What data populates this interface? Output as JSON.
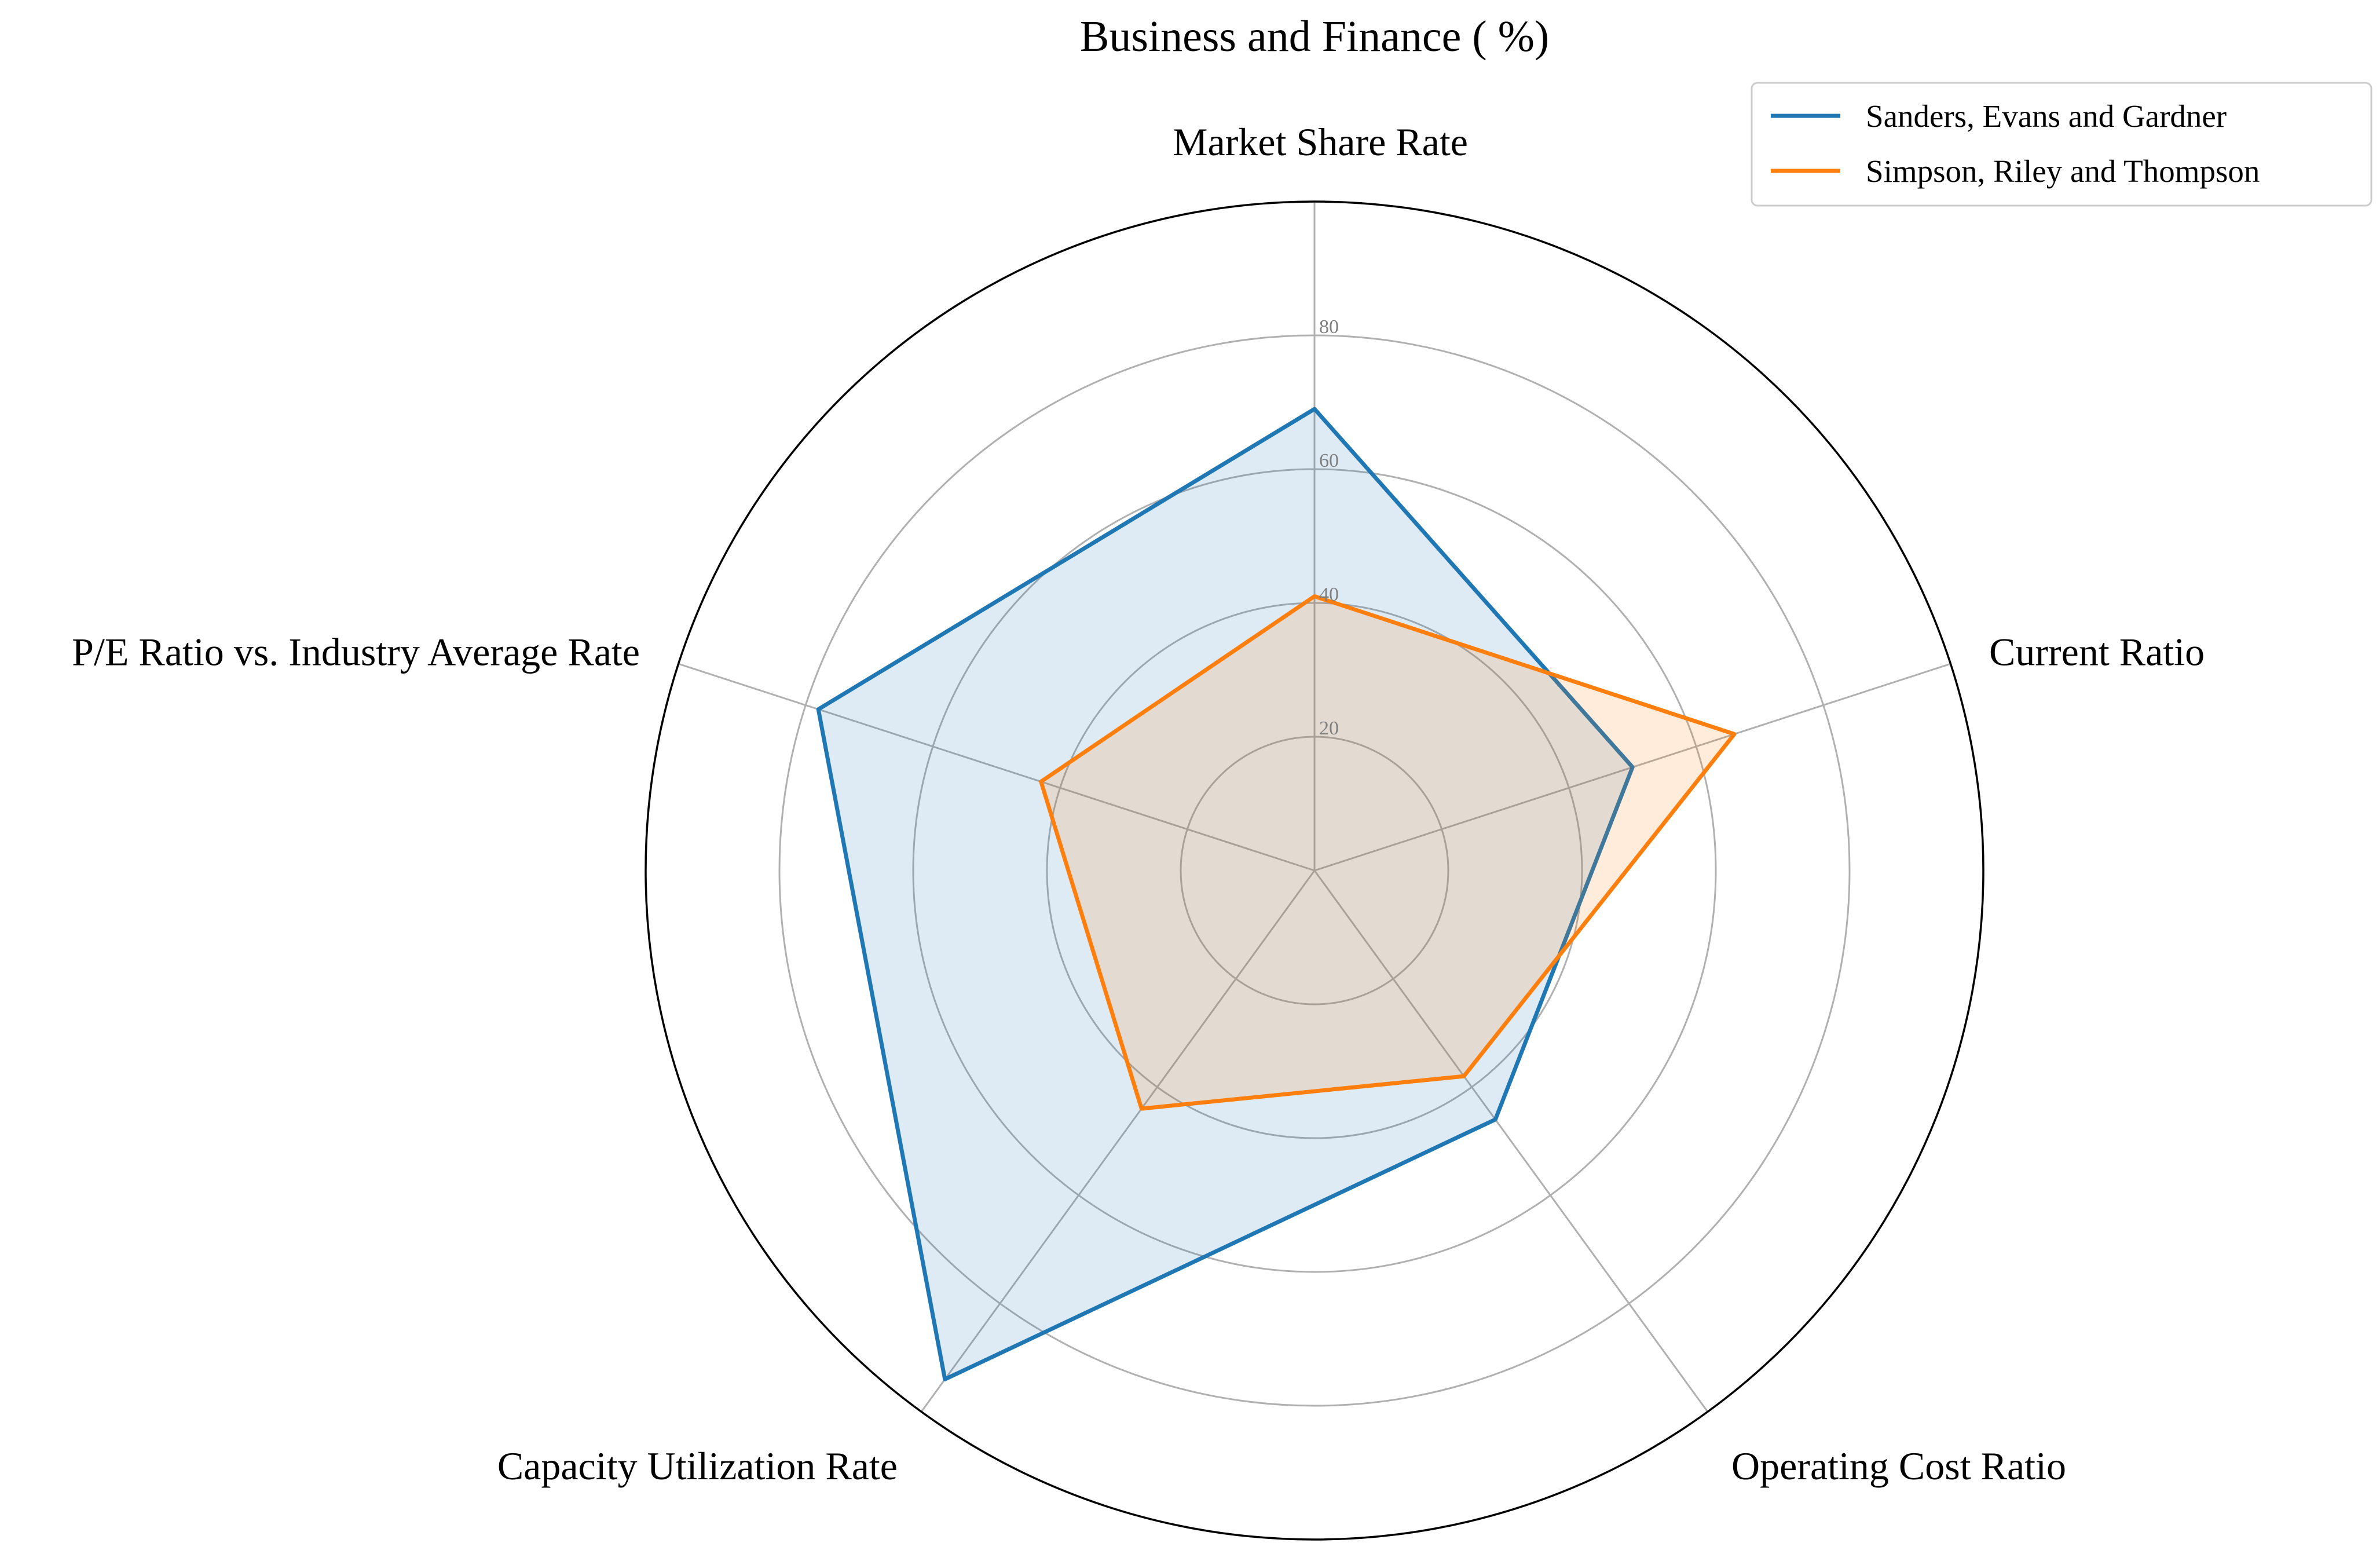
{
  "chart_data": {
    "type": "radar",
    "title": "Business and Finance ( %)",
    "categories": [
      "Market Share Rate",
      "Current Ratio",
      "Operating Cost Ratio",
      "Capacity Utilization Rate",
      "P/E Ratio vs. Industry Average Rate"
    ],
    "rmax": 100,
    "ticks": [
      20,
      40,
      60,
      80
    ],
    "tick_labels": [
      "20",
      "40",
      "60",
      "80"
    ],
    "grid": true,
    "legend_position": "top-right",
    "series": [
      {
        "name": "Sanders, Evans and Gardner",
        "values": [
          69,
          50,
          46,
          94,
          78
        ],
        "color": "#1f77b4",
        "fill": "#1f77b4"
      },
      {
        "name": "Simpson, Riley and Thompson",
        "values": [
          41,
          66,
          38,
          44,
          43
        ],
        "color": "#ff7f0e",
        "fill": "#ff7f0e"
      }
    ]
  }
}
